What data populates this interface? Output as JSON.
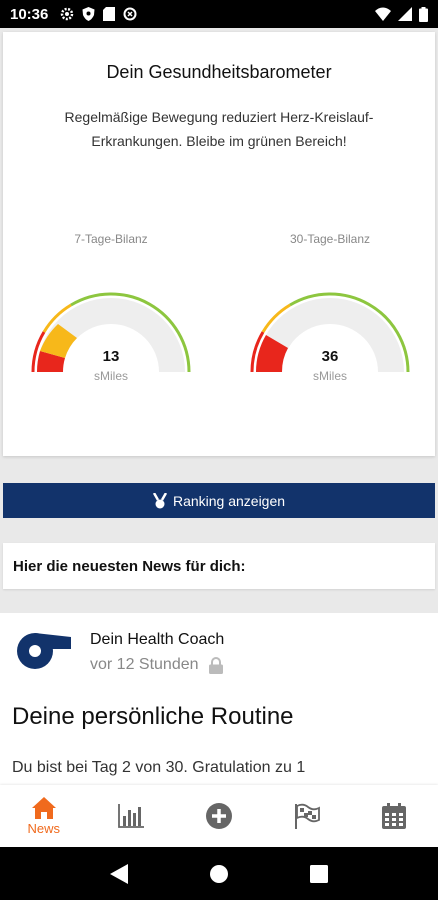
{
  "status_bar": {
    "time": "10:36"
  },
  "barometer": {
    "title": "Dein Gesundheitsbarometer",
    "description": "Regelmäßige Bewegung reduziert Herz-Kreislauf-Erkrankungen. Bleibe im grünen Bereich!",
    "gauges": [
      {
        "label": "7-Tage-Bilanz",
        "value": "13",
        "unit": "sMiles"
      },
      {
        "label": "30-Tage-Bilanz",
        "value": "36",
        "unit": "sMiles"
      }
    ]
  },
  "ranking_button": {
    "label": "Ranking anzeigen"
  },
  "news_header": {
    "label": "Hier die neuesten News für dich:"
  },
  "news_item": {
    "author": "Dein Health Coach",
    "time_ago": "vor 12 Stunden",
    "headline": "Deine persönliche Routine",
    "body": "Du bist bei Tag 2 von 30. Gratulation zu 1"
  },
  "bottom_nav": {
    "items": [
      {
        "label": "News",
        "icon": "home-icon",
        "active": true
      },
      {
        "label": "",
        "icon": "bar-chart-icon"
      },
      {
        "label": "",
        "icon": "add-circle-icon"
      },
      {
        "label": "",
        "icon": "checkered-flag-icon"
      },
      {
        "label": "",
        "icon": "calendar-icon"
      }
    ]
  },
  "colors": {
    "accent": "#f06a1d",
    "brand_navy": "#12336b",
    "gauge_red": "#e8261c",
    "gauge_yellow": "#f7b81a",
    "gauge_green": "#8dc63f"
  }
}
